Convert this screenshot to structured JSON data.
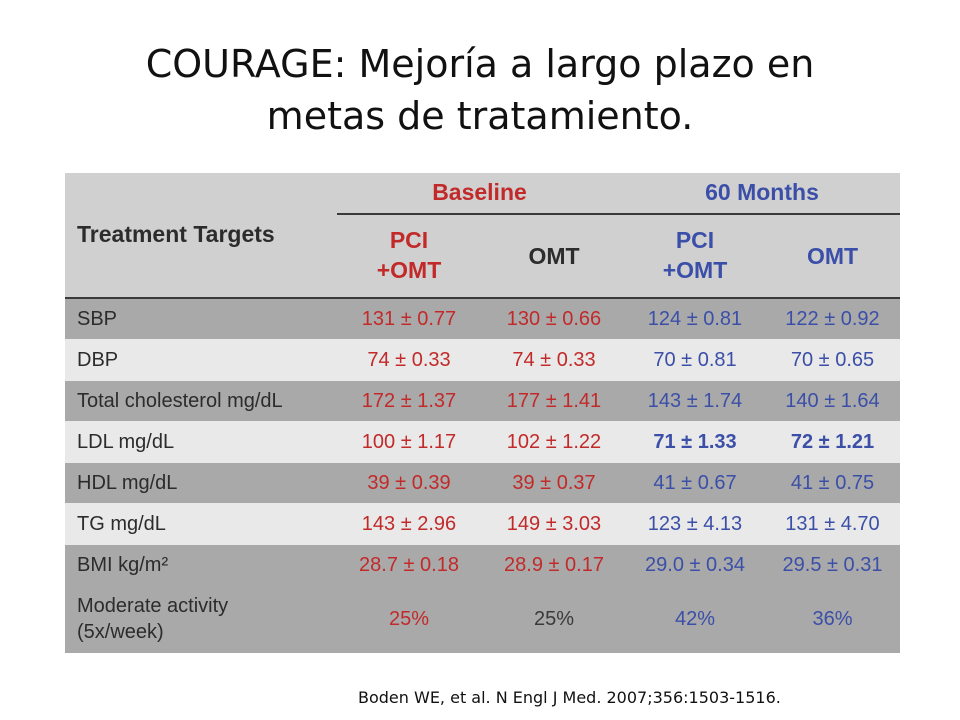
{
  "title_lines": [
    "COURAGE: Mejoría a largo plazo en",
    "metas de tratamiento."
  ],
  "table": {
    "header": {
      "row_label": "Treatment Targets",
      "groups": [
        "Baseline",
        "60 Months"
      ],
      "columns": [
        {
          "line1": "PCI",
          "line2": "+OMT"
        },
        {
          "line1": "OMT",
          "line2": ""
        },
        {
          "line1": "PCI",
          "line2": "+OMT"
        },
        {
          "line1": "OMT",
          "line2": ""
        }
      ]
    },
    "rows": [
      {
        "label": "SBP",
        "values": [
          "131 ± 0.77",
          "130 ± 0.66",
          "124 ± 0.81",
          "122 ± 0.92"
        ]
      },
      {
        "label": "DBP",
        "values": [
          "74 ± 0.33",
          "74 ± 0.33",
          "70 ± 0.81",
          "70 ± 0.65"
        ]
      },
      {
        "label": "Total cholesterol mg/dL",
        "values": [
          "172 ± 1.37",
          "177 ± 1.41",
          "143 ± 1.74",
          "140 ± 1.64"
        ]
      },
      {
        "label": "LDL mg/dL",
        "values": [
          "100 ± 1.17",
          "102 ± 1.22",
          "71 ± 1.33",
          "72 ± 1.21"
        ]
      },
      {
        "label": "HDL mg/dL",
        "values": [
          "39 ± 0.39",
          "39 ± 0.37",
          "41 ± 0.67",
          "41 ± 0.75"
        ]
      },
      {
        "label": "TG mg/dL",
        "values": [
          "143 ± 2.96",
          "149 ± 3.03",
          "123 ± 4.13",
          "131 ± 4.70"
        ]
      },
      {
        "label": "BMI kg/m²",
        "values": [
          "28.7 ± 0.18",
          "28.9 ± 0.17",
          "29.0 ± 0.34",
          "29.5 ± 0.31"
        ]
      },
      {
        "label_line1": "Moderate activity",
        "label_line2": "(5x/week)",
        "values": [
          "25%",
          "25%",
          "42%",
          "36%"
        ]
      }
    ]
  },
  "citation": "Boden WE, et al. N Engl J Med. 2007;356:1503-1516.",
  "colors": {
    "pci_omt": "#c22a2a",
    "omt_baseline": "#c22a2a",
    "followup": "#3b4fa8",
    "dark_row": "#a9a9a9",
    "light_row": "#e9e9e9"
  }
}
